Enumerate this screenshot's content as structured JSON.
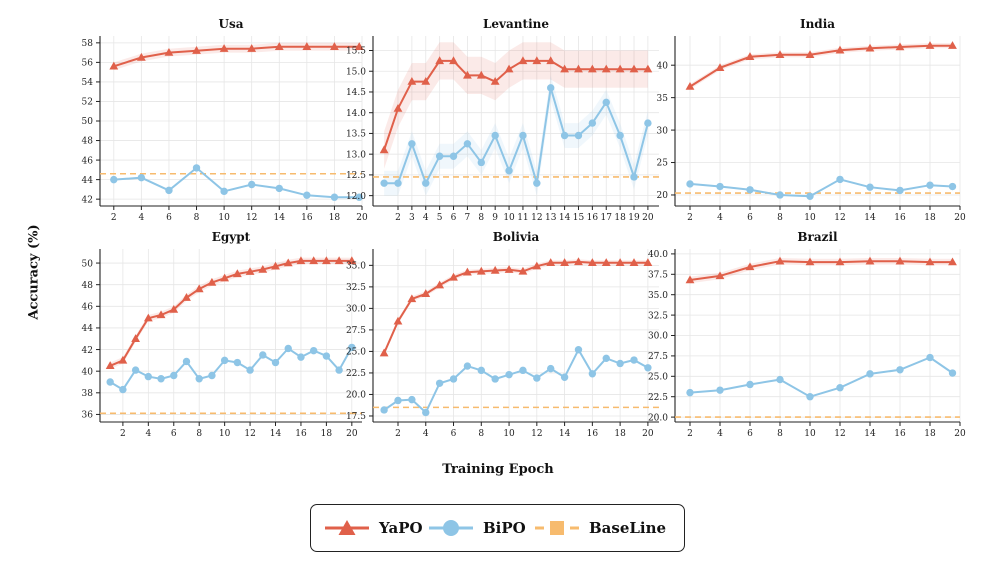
{
  "figure": {
    "ylabel": "Accuracy (%)",
    "xlabel": "Training Epoch",
    "colors": {
      "yapo": "#e0604a",
      "bipo": "#8ec5e6",
      "baseline": "#f7bb6e",
      "grid": "#e6e6e6",
      "axis": "#222222"
    }
  },
  "legend": {
    "items": [
      {
        "label": "YaPO",
        "marker": "triangle-icon"
      },
      {
        "label": "BiPO",
        "marker": "circle-icon"
      },
      {
        "label": "BaseLine",
        "marker": "square-icon"
      }
    ]
  },
  "chart_data": [
    {
      "type": "line",
      "title": "Usa",
      "xlim": [
        1,
        20
      ],
      "ylim": [
        41.3,
        58.7
      ],
      "xticks": [
        2,
        4,
        6,
        8,
        10,
        12,
        14,
        16,
        18,
        20
      ],
      "yticks": [
        42,
        44,
        46,
        48,
        50,
        52,
        54,
        56,
        58
      ],
      "ytick_decimals": 0,
      "baseline": 44.6,
      "series": [
        {
          "name": "YaPO",
          "x": [
            2,
            4,
            6,
            8,
            10,
            12,
            14,
            16,
            18,
            19.8
          ],
          "values": [
            55.6,
            56.5,
            57.0,
            57.2,
            57.4,
            57.4,
            57.6,
            57.6,
            57.6,
            57.6
          ],
          "band": 0.4
        },
        {
          "name": "BiPO",
          "x": [
            2,
            4,
            6,
            8,
            10,
            12,
            14,
            16,
            18,
            19.8
          ],
          "values": [
            44.0,
            44.2,
            42.9,
            45.2,
            42.8,
            43.5,
            43.1,
            42.4,
            42.2,
            42.2
          ],
          "band": 0
        }
      ]
    },
    {
      "type": "line",
      "title": "Levantine",
      "xlim": [
        0.2,
        20.8
      ],
      "ylim": [
        11.75,
        15.85
      ],
      "xticks": [
        2,
        3,
        4,
        5,
        6,
        7,
        8,
        9,
        10,
        11,
        12,
        13,
        14,
        15,
        16,
        17,
        18,
        19,
        20
      ],
      "yticks": [
        12.0,
        12.5,
        13.0,
        13.5,
        14.0,
        14.5,
        15.0,
        15.5
      ],
      "ytick_decimals": 1,
      "baseline": 12.45,
      "series": [
        {
          "name": "YaPO",
          "x": [
            1,
            2,
            3,
            4,
            5,
            6,
            7,
            8,
            9,
            10,
            11,
            12,
            13,
            14,
            15,
            16,
            17,
            18,
            19,
            20
          ],
          "values": [
            13.1,
            14.1,
            14.75,
            14.75,
            15.25,
            15.25,
            14.9,
            14.9,
            14.75,
            15.05,
            15.25,
            15.25,
            15.25,
            15.05,
            15.05,
            15.05,
            15.05,
            15.05,
            15.05,
            15.05
          ],
          "band": 0.45
        },
        {
          "name": "BiPO",
          "x": [
            1,
            2,
            3,
            4,
            5,
            6,
            7,
            8,
            9,
            10,
            11,
            12,
            13,
            14,
            15,
            16,
            17,
            18,
            19,
            20
          ],
          "values": [
            12.3,
            12.3,
            13.25,
            12.3,
            12.95,
            12.95,
            13.25,
            12.8,
            13.45,
            12.6,
            13.45,
            12.3,
            14.6,
            13.45,
            13.45,
            13.75,
            14.25,
            13.45,
            12.45,
            13.75
          ],
          "band": 0.3
        }
      ]
    },
    {
      "type": "line",
      "title": "India",
      "xlim": [
        1,
        20
      ],
      "ylim": [
        18.3,
        44.5
      ],
      "xticks": [
        2,
        4,
        6,
        8,
        10,
        12,
        14,
        16,
        18,
        20
      ],
      "yticks": [
        20,
        25,
        30,
        35,
        40
      ],
      "ytick_decimals": 0,
      "baseline": 20.3,
      "series": [
        {
          "name": "YaPO",
          "x": [
            2,
            4,
            6,
            8,
            10,
            12,
            14,
            16,
            18,
            19.5
          ],
          "values": [
            36.7,
            39.6,
            41.3,
            41.6,
            41.6,
            42.3,
            42.6,
            42.8,
            43.0,
            43.0
          ],
          "band": 0.4
        },
        {
          "name": "BiPO",
          "x": [
            2,
            4,
            6,
            8,
            10,
            12,
            14,
            16,
            18,
            19.5
          ],
          "values": [
            21.7,
            21.3,
            20.8,
            20.0,
            19.8,
            22.4,
            21.2,
            20.7,
            21.5,
            21.3
          ],
          "band": 0
        }
      ]
    },
    {
      "type": "line",
      "title": "Egypt",
      "xlim": [
        0.2,
        20.8
      ],
      "ylim": [
        35.3,
        51.3
      ],
      "xticks": [
        2,
        4,
        6,
        8,
        10,
        12,
        14,
        16,
        18,
        20
      ],
      "yticks": [
        36,
        38,
        40,
        42,
        44,
        46,
        48,
        50
      ],
      "ytick_decimals": 0,
      "baseline": 36.1,
      "series": [
        {
          "name": "YaPO",
          "x": [
            1,
            2,
            3,
            4,
            5,
            6,
            7,
            8,
            9,
            10,
            11,
            12,
            13,
            14,
            15,
            16,
            17,
            18,
            19,
            20
          ],
          "values": [
            40.5,
            41.0,
            43.0,
            44.9,
            45.2,
            45.7,
            46.8,
            47.6,
            48.2,
            48.6,
            49.0,
            49.2,
            49.4,
            49.7,
            50.0,
            50.2,
            50.2,
            50.2,
            50.2,
            50.2
          ],
          "band": 0.3
        },
        {
          "name": "BiPO",
          "x": [
            1,
            2,
            3,
            4,
            5,
            6,
            7,
            8,
            9,
            10,
            11,
            12,
            13,
            14,
            15,
            16,
            17,
            18,
            19,
            20
          ],
          "values": [
            39.0,
            38.3,
            40.1,
            39.5,
            39.3,
            39.6,
            40.9,
            39.3,
            39.6,
            41.0,
            40.8,
            40.1,
            41.5,
            40.8,
            42.1,
            41.3,
            41.9,
            41.4,
            40.1,
            42.2
          ],
          "band": 0
        }
      ]
    },
    {
      "type": "line",
      "title": "Bolivia",
      "xlim": [
        0.2,
        20.8
      ],
      "ylim": [
        16.8,
        36.9
      ],
      "xticks": [
        2,
        4,
        6,
        8,
        10,
        12,
        14,
        16,
        18,
        20
      ],
      "yticks": [
        17.5,
        20.0,
        22.5,
        25.0,
        27.5,
        30.0,
        32.5,
        35.0
      ],
      "ytick_decimals": 1,
      "baseline": 18.5,
      "series": [
        {
          "name": "YaPO",
          "x": [
            1,
            2,
            3,
            4,
            5,
            6,
            7,
            8,
            9,
            10,
            11,
            12,
            13,
            14,
            15,
            16,
            17,
            18,
            19,
            20
          ],
          "values": [
            24.8,
            28.5,
            31.1,
            31.7,
            32.7,
            33.6,
            34.2,
            34.3,
            34.4,
            34.5,
            34.3,
            34.9,
            35.3,
            35.3,
            35.4,
            35.3,
            35.3,
            35.3,
            35.3,
            35.3
          ],
          "band": 0.3
        },
        {
          "name": "BiPO",
          "x": [
            1,
            2,
            3,
            4,
            5,
            6,
            7,
            8,
            9,
            10,
            11,
            12,
            13,
            14,
            15,
            16,
            17,
            18,
            19,
            20
          ],
          "values": [
            18.2,
            19.3,
            19.4,
            17.9,
            21.3,
            21.8,
            23.3,
            22.8,
            21.8,
            22.3,
            22.8,
            21.9,
            23.0,
            22.0,
            25.2,
            22.4,
            24.2,
            23.6,
            24.0,
            23.1
          ],
          "band": 0
        }
      ]
    },
    {
      "type": "line",
      "title": "Brazil",
      "xlim": [
        1,
        20
      ],
      "ylim": [
        19.4,
        40.6
      ],
      "xticks": [
        2,
        4,
        6,
        8,
        10,
        12,
        14,
        16,
        18,
        20
      ],
      "yticks": [
        20.0,
        22.5,
        25.0,
        27.5,
        30.0,
        32.5,
        35.0,
        37.5,
        40.0
      ],
      "ytick_decimals": 1,
      "baseline": 20.0,
      "series": [
        {
          "name": "YaPO",
          "x": [
            2,
            4,
            6,
            8,
            10,
            12,
            14,
            16,
            18,
            19.5
          ],
          "values": [
            36.8,
            37.3,
            38.4,
            39.1,
            39.0,
            39.0,
            39.1,
            39.1,
            39.0,
            39.0
          ],
          "band": 0.4
        },
        {
          "name": "BiPO",
          "x": [
            2,
            4,
            6,
            8,
            10,
            12,
            14,
            16,
            18,
            19.5
          ],
          "values": [
            23.0,
            23.3,
            24.0,
            24.6,
            22.5,
            23.6,
            25.3,
            25.8,
            27.3,
            25.4
          ],
          "band": 0
        }
      ]
    }
  ]
}
